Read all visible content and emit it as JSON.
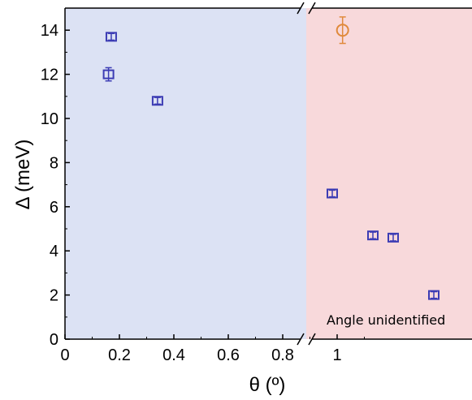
{
  "chart_data": {
    "type": "scatter",
    "xlabel": "θ (º)",
    "ylabel": "Δ (meV)",
    "xlim": [
      0,
      1.2
    ],
    "ylim": [
      0,
      15
    ],
    "x_ticks": [
      "0",
      "0.2",
      "0.4",
      "0.6",
      "0.8",
      "1"
    ],
    "y_ticks": [
      "0",
      "2",
      "4",
      "6",
      "8",
      "10",
      "12",
      "14"
    ],
    "regions": {
      "left_color": "#dce2f4",
      "right_color": "#f8d9db",
      "right_label": "Angle unidentified"
    },
    "axis_break": true,
    "series": [
      {
        "marker": "square",
        "color": "#3c3cb4",
        "points": [
          {
            "x": 0.17,
            "y": 13.7,
            "err": 0.15
          },
          {
            "x": 0.16,
            "y": 12.0,
            "err": 0.3
          },
          {
            "x": 0.34,
            "y": 10.8,
            "err": 0.15
          }
        ]
      },
      {
        "marker": "circle",
        "color": "#e08a3c",
        "points": [
          {
            "x": 1.02,
            "y": 14.0,
            "err": 0.6
          }
        ]
      }
    ],
    "unidentified_points": {
      "marker": "square",
      "color": "#3c3cb4",
      "values": [
        {
          "y": 6.6,
          "err": 0.15
        },
        {
          "y": 4.7,
          "err": 0.15
        },
        {
          "y": 4.6,
          "err": 0.15
        },
        {
          "y": 2.0,
          "err": 0.15
        }
      ]
    }
  }
}
